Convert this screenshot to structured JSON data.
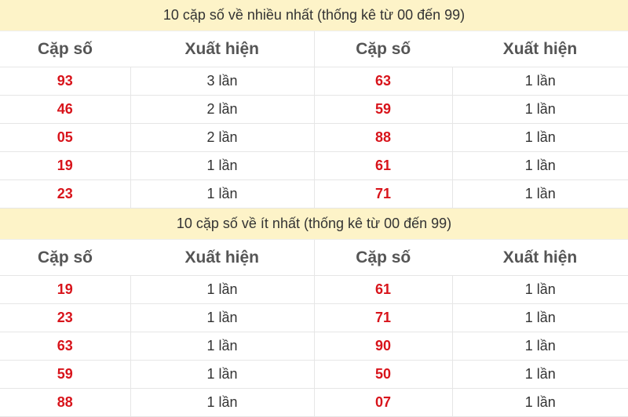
{
  "sections": [
    {
      "title": "10 cặp số về nhiều nhất (thống kê từ 00 đến 99)",
      "headers": [
        "Cặp số",
        "Xuất hiện",
        "Cặp số",
        "Xuất hiện"
      ],
      "rows": [
        [
          "93",
          "3 lần",
          "63",
          "1 lần"
        ],
        [
          "46",
          "2 lần",
          "59",
          "1 lần"
        ],
        [
          "05",
          "2 lần",
          "88",
          "1 lần"
        ],
        [
          "19",
          "1 lần",
          "61",
          "1 lần"
        ],
        [
          "23",
          "1 lần",
          "71",
          "1 lần"
        ]
      ]
    },
    {
      "title": "10 cặp số về ít nhất (thống kê từ 00 đến 99)",
      "headers": [
        "Cặp số",
        "Xuất hiện",
        "Cặp số",
        "Xuất hiện"
      ],
      "rows": [
        [
          "19",
          "1 lần",
          "61",
          "1 lần"
        ],
        [
          "23",
          "1 lần",
          "71",
          "1 lần"
        ],
        [
          "63",
          "1 lần",
          "90",
          "1 lần"
        ],
        [
          "59",
          "1 lần",
          "50",
          "1 lần"
        ],
        [
          "88",
          "1 lần",
          "07",
          "1 lần"
        ]
      ]
    }
  ],
  "colors": {
    "number": "#d8141b",
    "title_bg": "#fdf3c8"
  }
}
